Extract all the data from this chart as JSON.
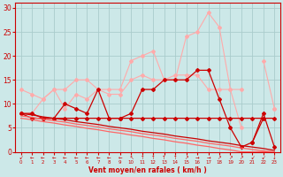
{
  "x": [
    0,
    1,
    2,
    3,
    4,
    5,
    6,
    7,
    8,
    9,
    10,
    11,
    12,
    13,
    14,
    15,
    16,
    17,
    18,
    19,
    20,
    21,
    22,
    23
  ],
  "line_light1": [
    13,
    12,
    11,
    13,
    13,
    15,
    15,
    13,
    13,
    13,
    19,
    20,
    21,
    15,
    15,
    24,
    25,
    29,
    26,
    13,
    13,
    null,
    19,
    9
  ],
  "line_light2": [
    8,
    8,
    11,
    13,
    9,
    12,
    11,
    13,
    12,
    12,
    15,
    16,
    15,
    15,
    16,
    16,
    16,
    13,
    13,
    13,
    5,
    null,
    null,
    9
  ],
  "line_dark1": [
    8,
    7,
    7,
    7,
    10,
    9,
    8,
    13,
    7,
    7,
    8,
    13,
    13,
    15,
    15,
    15,
    17,
    17,
    11,
    5,
    1,
    2,
    7,
    null
  ],
  "line_dark2": [
    8,
    8,
    7,
    7,
    7,
    7,
    7,
    7,
    7,
    7,
    7,
    7,
    7,
    7,
    7,
    7,
    7,
    7,
    7,
    7,
    7,
    7,
    7,
    7
  ],
  "line_slope1": [
    8.0,
    7.7,
    7.3,
    7.0,
    6.7,
    6.3,
    6.0,
    5.7,
    5.3,
    5.0,
    4.7,
    4.3,
    4.0,
    3.7,
    3.3,
    3.0,
    2.7,
    2.3,
    2.0,
    1.7,
    1.3,
    1.0,
    0.7,
    0.3
  ],
  "line_slope2": [
    7.5,
    7.2,
    6.8,
    6.5,
    6.2,
    5.8,
    5.5,
    5.2,
    4.8,
    4.5,
    4.2,
    3.8,
    3.5,
    3.2,
    2.8,
    2.5,
    2.2,
    1.8,
    1.5,
    1.2,
    0.8,
    0.5,
    0.2,
    0.0
  ],
  "line_slope3": [
    7.0,
    6.7,
    6.3,
    6.0,
    5.6,
    5.3,
    4.9,
    4.6,
    4.2,
    3.9,
    3.5,
    3.2,
    2.8,
    2.5,
    2.1,
    1.8,
    1.4,
    1.1,
    0.7,
    0.4,
    0.0,
    0.0,
    0.0,
    0.0
  ],
  "line_peak": [
    null,
    null,
    null,
    null,
    null,
    null,
    null,
    null,
    null,
    null,
    null,
    null,
    null,
    null,
    null,
    null,
    null,
    null,
    null,
    null,
    null,
    2,
    8,
    1
  ],
  "bg_color": "#cce8e8",
  "grid_color": "#aacccc",
  "color_light": "#ffaaaa",
  "color_medium": "#ff6666",
  "color_dark": "#cc0000",
  "xlabel": "Vent moyen/en rafales ( km/h )",
  "ylim": [
    0,
    31
  ],
  "xlim": [
    -0.5,
    23.5
  ],
  "yticks": [
    0,
    5,
    10,
    15,
    20,
    25,
    30
  ],
  "xticks": [
    0,
    1,
    2,
    3,
    4,
    5,
    6,
    7,
    8,
    9,
    10,
    11,
    12,
    13,
    14,
    15,
    16,
    17,
    18,
    19,
    20,
    21,
    22,
    23
  ],
  "arrows": [
    "↙",
    "←",
    "←",
    "←",
    "←",
    "←",
    "←",
    "←",
    "←",
    "←",
    "↖",
    "↑",
    "↑",
    "↑",
    "↑",
    "↗",
    "→",
    "→",
    "↗",
    "↗",
    "↗",
    "↙",
    "↙",
    "↓"
  ]
}
